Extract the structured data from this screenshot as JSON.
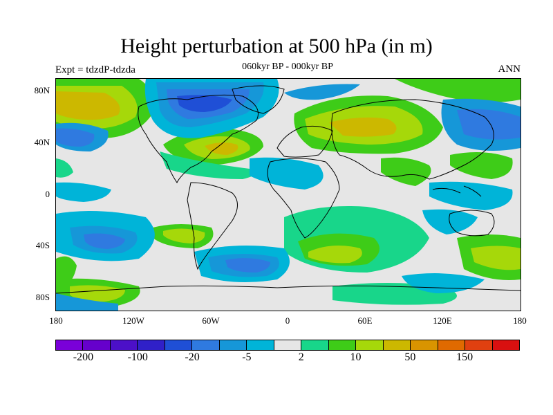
{
  "title": "Height perturbation at 500 hPa (in m)",
  "subtitle": "060kyr BP - 000kyr BP",
  "left_label": "Expt = tdzdP-tdzda",
  "right_label": "ANN",
  "lat_labels": [
    "80N",
    "40N",
    "0",
    "40S",
    "80S"
  ],
  "lon_labels": [
    "180",
    "120W",
    "60W",
    "0",
    "60E",
    "120E",
    "180"
  ],
  "colorbar": {
    "colors": [
      "#7a00d9",
      "#6600cc",
      "#4c10c8",
      "#3020c8",
      "#1f4fd6",
      "#2f7ae0",
      "#1697d8",
      "#00b4d8",
      "#e6e6e6",
      "#18d68a",
      "#3ecc18",
      "#a6d80a",
      "#ccb800",
      "#d99400",
      "#e06a00",
      "#e04010",
      "#d91010"
    ],
    "labels": [
      "-200",
      "-100",
      "-20",
      "-5",
      "2",
      "10",
      "50",
      "150"
    ]
  },
  "field_colors": {
    "neutral": "#e6e6e6",
    "pos_weak": "#18d68a",
    "pos_mid": "#3ecc18",
    "pos_strong": "#a6d80a",
    "pos_max": "#ccb800",
    "neg_weak": "#00b4d8",
    "neg_mid": "#1697d8",
    "neg_strong": "#2f7ae0",
    "neg_max": "#1f4fd6"
  }
}
